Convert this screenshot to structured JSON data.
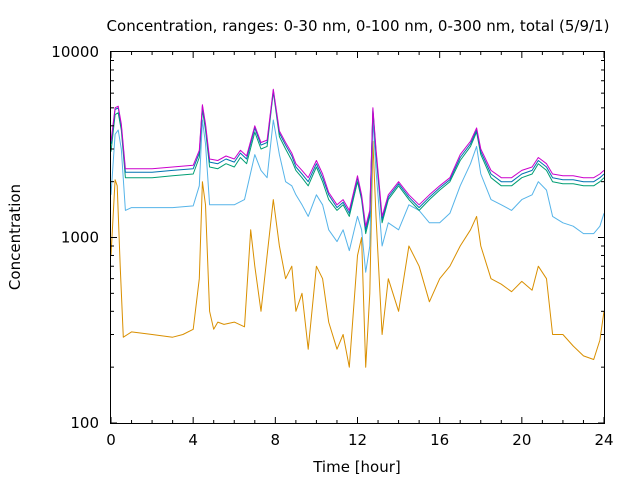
{
  "chart_data": {
    "type": "line",
    "title": "Concentration, ranges: 0-30 nm, 0-100 nm, 0-300 nm, total (5/9/1)",
    "xlabel": "Time [hour]",
    "ylabel": "Concentration",
    "xlim": [
      0,
      24
    ],
    "ylim": [
      100,
      10000
    ],
    "yscale": "log",
    "grid": false,
    "legend": "none",
    "x_ticks": [
      "0",
      "4",
      "8",
      "12",
      "16",
      "20",
      "24"
    ],
    "y_ticks": [
      "100",
      "1000",
      "10000"
    ],
    "series": [
      {
        "color": "#d98f00",
        "x": [
          0,
          0.2,
          0.3,
          0.45,
          0.6,
          1,
          2,
          3,
          3.5,
          4,
          4.3,
          4.45,
          4.6,
          4.8,
          5,
          5.2,
          5.5,
          6,
          6.5,
          6.8,
          7,
          7.3,
          7.6,
          7.9,
          8.2,
          8.5,
          8.8,
          9,
          9.3,
          9.6,
          10,
          10.3,
          10.6,
          11,
          11.3,
          11.6,
          12,
          12.2,
          12.4,
          12.6,
          12.75,
          12.9,
          13.2,
          13.5,
          14,
          14.5,
          15,
          15.5,
          16,
          16.5,
          17,
          17.5,
          17.8,
          18,
          18.5,
          19,
          19.5,
          20,
          20.5,
          20.8,
          21.2,
          21.5,
          22,
          22.5,
          23,
          23.5,
          23.8,
          24
        ],
        "y": [
          800,
          2050,
          1900,
          700,
          290,
          310,
          300,
          290,
          300,
          320,
          600,
          2000,
          1500,
          400,
          320,
          350,
          340,
          350,
          330,
          1100,
          700,
          400,
          800,
          1600,
          900,
          600,
          700,
          400,
          500,
          250,
          700,
          600,
          350,
          250,
          300,
          200,
          800,
          1000,
          200,
          500,
          3300,
          1300,
          300,
          600,
          400,
          900,
          700,
          450,
          600,
          700,
          900,
          1100,
          1300,
          900,
          600,
          560,
          510,
          580,
          520,
          700,
          600,
          300,
          300,
          260,
          230,
          220,
          280,
          400
        ]
      },
      {
        "color": "#56b4e9",
        "x": [
          0,
          0.2,
          0.35,
          0.5,
          0.7,
          1,
          2,
          3,
          4,
          4.3,
          4.45,
          4.6,
          4.8,
          5.2,
          6,
          6.5,
          7,
          7.3,
          7.6,
          7.9,
          8.2,
          8.5,
          8.8,
          9,
          9.3,
          9.6,
          10,
          10.3,
          10.6,
          11,
          11.3,
          11.6,
          12,
          12.2,
          12.4,
          12.6,
          12.75,
          12.9,
          13.2,
          13.5,
          14,
          14.5,
          15,
          15.5,
          16,
          16.5,
          17,
          17.5,
          17.8,
          18,
          18.5,
          19,
          19.5,
          20,
          20.5,
          20.8,
          21.2,
          21.5,
          22,
          22.5,
          23,
          23.5,
          23.8,
          24
        ],
        "y": [
          1700,
          3600,
          3800,
          3000,
          1400,
          1450,
          1450,
          1450,
          1480,
          1900,
          4300,
          3200,
          1500,
          1500,
          1500,
          1600,
          2800,
          2300,
          2100,
          4300,
          2800,
          2000,
          1900,
          1700,
          1500,
          1300,
          1700,
          1500,
          1100,
          950,
          1100,
          850,
          1300,
          1100,
          650,
          900,
          4300,
          2300,
          900,
          1200,
          1100,
          1500,
          1400,
          1200,
          1200,
          1350,
          1900,
          2500,
          3100,
          2200,
          1600,
          1500,
          1400,
          1600,
          1700,
          2000,
          1800,
          1300,
          1200,
          1150,
          1050,
          1050,
          1150,
          1350
        ]
      },
      {
        "color": "#009e73",
        "x": [
          0,
          0.2,
          0.35,
          0.5,
          0.7,
          1,
          2,
          3,
          4,
          4.3,
          4.45,
          4.6,
          4.8,
          5.2,
          5.6,
          6,
          6.3,
          6.6,
          7,
          7.3,
          7.6,
          7.9,
          8.2,
          8.5,
          8.8,
          9,
          9.3,
          9.6,
          10,
          10.3,
          10.6,
          11,
          11.3,
          11.6,
          12,
          12.2,
          12.4,
          12.6,
          12.75,
          12.9,
          13.2,
          13.5,
          14,
          14.5,
          15,
          15.5,
          16,
          16.5,
          17,
          17.5,
          17.8,
          18,
          18.5,
          19,
          19.5,
          20,
          20.5,
          20.8,
          21.2,
          21.5,
          22,
          22.5,
          23,
          23.5,
          23.8,
          24
        ],
        "y": [
          2900,
          4600,
          4700,
          3800,
          2100,
          2100,
          2100,
          2150,
          2200,
          2700,
          4900,
          3800,
          2400,
          2350,
          2500,
          2400,
          2700,
          2500,
          3700,
          3000,
          3100,
          6100,
          3500,
          3000,
          2600,
          2300,
          2100,
          1900,
          2400,
          2000,
          1600,
          1400,
          1500,
          1300,
          2000,
          1600,
          1050,
          1300,
          4800,
          2800,
          1200,
          1600,
          1900,
          1600,
          1400,
          1600,
          1800,
          2000,
          2600,
          3100,
          3700,
          2800,
          2100,
          1900,
          1900,
          2100,
          2200,
          2500,
          2300,
          2000,
          1950,
          1950,
          1900,
          1900,
          2000,
          2100
        ]
      },
      {
        "color": "#0072b2",
        "x": [
          0,
          0.2,
          0.35,
          0.5,
          0.7,
          1,
          2,
          3,
          4,
          4.3,
          4.45,
          4.6,
          4.8,
          5.2,
          5.6,
          6,
          6.3,
          6.6,
          7,
          7.3,
          7.6,
          7.9,
          8.2,
          8.5,
          8.8,
          9,
          9.3,
          9.6,
          10,
          10.3,
          10.6,
          11,
          11.3,
          11.6,
          12,
          12.2,
          12.4,
          12.6,
          12.75,
          12.9,
          13.2,
          13.5,
          14,
          14.5,
          15,
          15.5,
          16,
          16.5,
          17,
          17.5,
          17.8,
          18,
          18.5,
          19,
          19.5,
          20,
          20.5,
          20.8,
          21.2,
          21.5,
          22,
          22.5,
          23,
          23.5,
          23.8,
          24
        ],
        "y": [
          3200,
          4900,
          5000,
          4000,
          2250,
          2250,
          2250,
          2300,
          2350,
          2850,
          5100,
          4000,
          2550,
          2500,
          2650,
          2550,
          2850,
          2650,
          3900,
          3150,
          3250,
          6200,
          3650,
          3150,
          2750,
          2400,
          2200,
          2000,
          2500,
          2100,
          1700,
          1450,
          1550,
          1350,
          2100,
          1650,
          1100,
          1350,
          4900,
          2900,
          1250,
          1650,
          1950,
          1650,
          1450,
          1650,
          1850,
          2050,
          2700,
          3200,
          3800,
          2900,
          2200,
          2000,
          2000,
          2200,
          2300,
          2600,
          2400,
          2100,
          2050,
          2050,
          2000,
          2000,
          2100,
          2200
        ]
      },
      {
        "color": "#cc00cc",
        "x": [
          0,
          0.2,
          0.35,
          0.5,
          0.7,
          1,
          2,
          3,
          4,
          4.3,
          4.45,
          4.6,
          4.8,
          5.2,
          5.6,
          6,
          6.3,
          6.6,
          7,
          7.3,
          7.6,
          7.9,
          8.2,
          8.5,
          8.8,
          9,
          9.3,
          9.6,
          10,
          10.3,
          10.6,
          11,
          11.3,
          11.6,
          12,
          12.2,
          12.4,
          12.6,
          12.75,
          12.9,
          13.2,
          13.5,
          14,
          14.5,
          15,
          15.5,
          16,
          16.5,
          17,
          17.5,
          17.8,
          18,
          18.5,
          19,
          19.5,
          20,
          20.5,
          20.8,
          21.2,
          21.5,
          22,
          22.5,
          23,
          23.5,
          23.8,
          24
        ],
        "y": [
          3300,
          5000,
          5100,
          4100,
          2350,
          2350,
          2350,
          2400,
          2450,
          2950,
          5200,
          4100,
          2650,
          2600,
          2750,
          2650,
          2950,
          2750,
          4000,
          3250,
          3350,
          6300,
          3750,
          3250,
          2850,
          2500,
          2300,
          2100,
          2600,
          2200,
          1750,
          1500,
          1600,
          1400,
          2150,
          1700,
          1150,
          1400,
          5000,
          3000,
          1300,
          1700,
          2000,
          1700,
          1500,
          1700,
          1900,
          2100,
          2800,
          3300,
          3900,
          3000,
          2300,
          2100,
          2100,
          2300,
          2400,
          2700,
          2500,
          2200,
          2150,
          2150,
          2100,
          2100,
          2200,
          2300
        ]
      }
    ]
  }
}
